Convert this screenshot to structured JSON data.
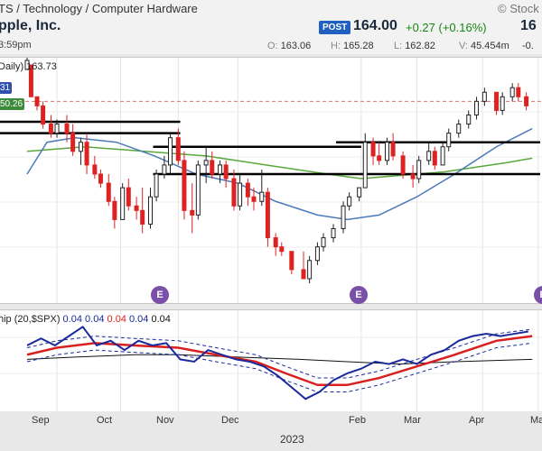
{
  "header": {
    "breadcrumb": "TS / Technology / Computer Hardware",
    "company": "pple, Inc.",
    "time": "3:59pm",
    "brand": "© Stock",
    "post_label": "POST",
    "last": "164.00",
    "change": "+0.27 (+0.16%)",
    "price_cut": "16",
    "ohlc": [
      {
        "k": "O:",
        "v": "163.06"
      },
      {
        "k": "H:",
        "v": "165.28"
      },
      {
        "k": "L:",
        "v": "162.82"
      },
      {
        "k": "V:",
        "v": "45.454m"
      }
    ],
    "ohlc_last_cut": "-0."
  },
  "colors": {
    "up": "#222222",
    "down": "#dd2222",
    "ma_green": "#5aa83c",
    "ma_blue": "#4a7ab8",
    "price_dash": "#e07070",
    "rs_line": "#1a2a9a",
    "rs_ma": "#d82020",
    "band": "#1a2a9a",
    "base": "#111111",
    "event": "#7a4fa8"
  },
  "chart_data": [
    {
      "type": "candlestick",
      "title": "Daily) 163.73",
      "badges": [
        "31",
        "50.26"
      ],
      "y_range": [
        124,
        172
      ],
      "last_price": 164.0,
      "x_dates_range": [
        "2022-08-17",
        "2023-05-02"
      ],
      "ohlc": [
        [
          "2022-08-17",
          171,
          174,
          171,
          173
        ],
        [
          "2022-08-19",
          172,
          172,
          165,
          165
        ],
        [
          "2022-08-22",
          165,
          165,
          162,
          163
        ],
        [
          "2022-08-25",
          163,
          164,
          158,
          159
        ],
        [
          "2022-08-29",
          159,
          161,
          156,
          157
        ],
        [
          "2022-09-01",
          157,
          160,
          156,
          159
        ],
        [
          "2022-09-06",
          159,
          161,
          155,
          157
        ],
        [
          "2022-09-09",
          157,
          159,
          152,
          153
        ],
        [
          "2022-09-13",
          153,
          156,
          150,
          155
        ],
        [
          "2022-09-16",
          155,
          157,
          148,
          150
        ],
        [
          "2022-09-20",
          150,
          152,
          147,
          148
        ],
        [
          "2022-09-23",
          148,
          149,
          145,
          146
        ],
        [
          "2022-09-27",
          146,
          148,
          141,
          142
        ],
        [
          "2022-09-30",
          142,
          143,
          136,
          138
        ],
        [
          "2022-10-04",
          138,
          146,
          138,
          145
        ],
        [
          "2022-10-07",
          145,
          147,
          140,
          141
        ],
        [
          "2022-10-11",
          141,
          143,
          138,
          140
        ],
        [
          "2022-10-14",
          140,
          145,
          135,
          137
        ],
        [
          "2022-10-18",
          137,
          145,
          136,
          143
        ],
        [
          "2022-10-21",
          143,
          149,
          142,
          148
        ],
        [
          "2022-10-25",
          148,
          152,
          147,
          150
        ],
        [
          "2022-10-28",
          150,
          157,
          148,
          156
        ],
        [
          "2022-11-01",
          156,
          158,
          150,
          151
        ],
        [
          "2022-11-04",
          151,
          153,
          138,
          140
        ],
        [
          "2022-11-08",
          140,
          146,
          135,
          139
        ],
        [
          "2022-11-11",
          139,
          151,
          138,
          150
        ],
        [
          "2022-11-15",
          150,
          154,
          146,
          151
        ],
        [
          "2022-11-18",
          151,
          153,
          147,
          148
        ],
        [
          "2022-11-22",
          148,
          151,
          146,
          150
        ],
        [
          "2022-11-25",
          150,
          151,
          145,
          147
        ],
        [
          "2022-11-29",
          147,
          149,
          140,
          141
        ],
        [
          "2022-12-02",
          141,
          148,
          140,
          146
        ],
        [
          "2022-12-06",
          146,
          147,
          141,
          143
        ],
        [
          "2022-12-09",
          143,
          145,
          140,
          142
        ],
        [
          "2022-12-13",
          142,
          149,
          141,
          144
        ],
        [
          "2022-12-16",
          144,
          145,
          132,
          134
        ],
        [
          "2022-12-20",
          134,
          135,
          130,
          132
        ],
        [
          "2022-12-23",
          132,
          133,
          130,
          131
        ],
        [
          "2022-12-28",
          131,
          131,
          126,
          127
        ],
        [
          "2023-01-03",
          127,
          131,
          125,
          125
        ],
        [
          "2023-01-06",
          125,
          130,
          124,
          129
        ],
        [
          "2023-01-10",
          129,
          133,
          128,
          132
        ],
        [
          "2023-01-13",
          132,
          135,
          131,
          134
        ],
        [
          "2023-01-18",
          134,
          137,
          133,
          136
        ],
        [
          "2023-01-23",
          136,
          142,
          135,
          141
        ],
        [
          "2023-01-26",
          141,
          144,
          140,
          143
        ],
        [
          "2023-01-31",
          143,
          145,
          142,
          145
        ],
        [
          "2023-02-03",
          145,
          157,
          145,
          155
        ],
        [
          "2023-02-07",
          155,
          156,
          150,
          152
        ],
        [
          "2023-02-10",
          152,
          155,
          150,
          151
        ],
        [
          "2023-02-14",
          151,
          156,
          150,
          155
        ],
        [
          "2023-02-17",
          155,
          157,
          151,
          152
        ],
        [
          "2023-02-22",
          152,
          153,
          147,
          148
        ],
        [
          "2023-02-27",
          148,
          150,
          145,
          147
        ],
        [
          "2023-03-02",
          147,
          152,
          146,
          151
        ],
        [
          "2023-03-07",
          151,
          155,
          150,
          153
        ],
        [
          "2023-03-10",
          153,
          154,
          149,
          150
        ],
        [
          "2023-03-14",
          150,
          155,
          150,
          154
        ],
        [
          "2023-03-17",
          154,
          158,
          153,
          157
        ],
        [
          "2023-03-22",
          157,
          160,
          156,
          159
        ],
        [
          "2023-03-27",
          159,
          162,
          158,
          161
        ],
        [
          "2023-03-31",
          161,
          165,
          160,
          164
        ],
        [
          "2023-04-04",
          164,
          167,
          163,
          166
        ],
        [
          "2023-04-10",
          166,
          166,
          161,
          162
        ],
        [
          "2023-04-13",
          162,
          166,
          161,
          165
        ],
        [
          "2023-04-18",
          165,
          168,
          164,
          167
        ],
        [
          "2023-04-21",
          167,
          168,
          164,
          165
        ],
        [
          "2023-04-25",
          165,
          166,
          162,
          163
        ]
      ],
      "moving_average_green": [
        [
          "2022-08-17",
          153
        ],
        [
          "2022-09-15",
          154
        ],
        [
          "2022-10-15",
          153
        ],
        [
          "2022-11-15",
          152
        ],
        [
          "2022-12-15",
          150
        ],
        [
          "2023-01-15",
          148
        ],
        [
          "2023-02-01",
          147
        ],
        [
          "2023-02-15",
          147.5
        ],
        [
          "2023-03-15",
          148.5
        ],
        [
          "2023-04-15",
          150.5
        ],
        [
          "2023-04-28",
          151.5
        ]
      ],
      "moving_average_blue": [
        [
          "2022-08-17",
          148
        ],
        [
          "2022-08-27",
          155
        ],
        [
          "2022-09-10",
          156
        ],
        [
          "2022-10-01",
          155
        ],
        [
          "2022-10-20",
          152
        ],
        [
          "2022-11-10",
          148
        ],
        [
          "2022-12-01",
          146
        ],
        [
          "2022-12-20",
          142
        ],
        [
          "2023-01-10",
          139
        ],
        [
          "2023-01-25",
          138
        ],
        [
          "2023-02-10",
          139
        ],
        [
          "2023-03-01",
          143
        ],
        [
          "2023-03-20",
          148
        ],
        [
          "2023-04-10",
          154
        ],
        [
          "2023-04-28",
          158
        ]
      ],
      "horizontal_levels": [
        {
          "y": 157,
          "from": "2022-08-17",
          "to": "2022-11-02"
        },
        {
          "y": 159.5,
          "from": "2022-08-17",
          "to": "2022-11-02"
        },
        {
          "y": 154,
          "from": "2022-11-02",
          "to": "2023-02-01"
        },
        {
          "y": 148,
          "from": "2022-11-02",
          "to": "2023-05-02"
        },
        {
          "y": 155,
          "from": "2023-02-02",
          "to": "2023-05-02"
        }
      ],
      "events": [
        {
          "label": "E",
          "date": "2022-10-31"
        },
        {
          "label": "E",
          "date": "2023-02-02"
        },
        {
          "label": "E",
          "date": "2023-05-02"
        }
      ]
    },
    {
      "type": "line",
      "title": "hip (20,$SPX)",
      "values_label": [
        "0.04",
        "0.04",
        "0.04",
        "0.04",
        "0.04"
      ],
      "y_range": [
        0.84,
        1.22
      ],
      "series": [
        {
          "points": [
            [
              "2022-08-17",
              1.1
            ],
            [
              "2022-08-24",
              1.13
            ],
            [
              "2022-08-31",
              1.1
            ],
            [
              "2022-09-07",
              1.14
            ],
            [
              "2022-09-14",
              1.18
            ],
            [
              "2022-09-21",
              1.1
            ],
            [
              "2022-09-28",
              1.12
            ],
            [
              "2022-10-05",
              1.08
            ],
            [
              "2022-10-12",
              1.12
            ],
            [
              "2022-10-19",
              1.1
            ],
            [
              "2022-10-26",
              1.11
            ],
            [
              "2022-11-02",
              1.04
            ],
            [
              "2022-11-09",
              1.03
            ],
            [
              "2022-11-16",
              1.08
            ],
            [
              "2022-11-23",
              1.06
            ],
            [
              "2022-11-30",
              1.04
            ],
            [
              "2022-12-07",
              1.03
            ],
            [
              "2022-12-14",
              1.01
            ],
            [
              "2022-12-21",
              0.97
            ],
            [
              "2022-12-28",
              0.92
            ],
            [
              "2023-01-04",
              0.87
            ],
            [
              "2023-01-11",
              0.9
            ],
            [
              "2023-01-18",
              0.95
            ],
            [
              "2023-01-25",
              0.98
            ],
            [
              "2023-02-01",
              1.0
            ],
            [
              "2023-02-08",
              1.03
            ],
            [
              "2023-02-15",
              1.02
            ],
            [
              "2023-02-22",
              1.04
            ],
            [
              "2023-03-01",
              1.02
            ],
            [
              "2023-03-08",
              1.06
            ],
            [
              "2023-03-15",
              1.08
            ],
            [
              "2023-03-22",
              1.12
            ],
            [
              "2023-03-29",
              1.14
            ],
            [
              "2023-04-05",
              1.15
            ],
            [
              "2023-04-12",
              1.14
            ],
            [
              "2023-04-19",
              1.15
            ],
            [
              "2023-04-26",
              1.16
            ]
          ]
        },
        {
          "points": [
            [
              "2022-08-17",
              1.06
            ],
            [
              "2022-09-01",
              1.09
            ],
            [
              "2022-09-20",
              1.11
            ],
            [
              "2022-10-10",
              1.1
            ],
            [
              "2022-11-01",
              1.09
            ],
            [
              "2022-11-20",
              1.06
            ],
            [
              "2022-12-10",
              1.03
            ],
            [
              "2022-12-25",
              0.98
            ],
            [
              "2023-01-10",
              0.93
            ],
            [
              "2023-01-25",
              0.93
            ],
            [
              "2023-02-10",
              0.96
            ],
            [
              "2023-03-01",
              1.01
            ],
            [
              "2023-03-20",
              1.06
            ],
            [
              "2023-04-10",
              1.12
            ],
            [
              "2023-04-28",
              1.14
            ]
          ]
        },
        {
          "points": [
            [
              "2022-08-17",
              1.04
            ],
            [
              "2022-09-10",
              1.05
            ],
            [
              "2022-10-10",
              1.06
            ],
            [
              "2022-11-01",
              1.06
            ],
            [
              "2022-12-01",
              1.05
            ],
            [
              "2023-01-01",
              1.04
            ],
            [
              "2023-01-25",
              1.03
            ],
            [
              "2023-02-20",
              1.02
            ],
            [
              "2023-03-20",
              1.03
            ],
            [
              "2023-04-28",
              1.04
            ]
          ]
        }
      ]
    }
  ],
  "x_axis": {
    "ticks": [
      {
        "label": "Sep",
        "date": "2022-09-01"
      },
      {
        "label": "Oct",
        "date": "2022-10-03"
      },
      {
        "label": "Nov",
        "date": "2022-11-01"
      },
      {
        "label": "Dec",
        "date": "2022-12-01"
      },
      {
        "label": "Feb",
        "date": "2023-02-01"
      },
      {
        "label": "Mar",
        "date": "2023-03-01"
      },
      {
        "label": "Apr",
        "date": "2023-04-03"
      },
      {
        "label": "Ma",
        "date": "2023-05-01"
      }
    ],
    "year_label": "2023"
  }
}
